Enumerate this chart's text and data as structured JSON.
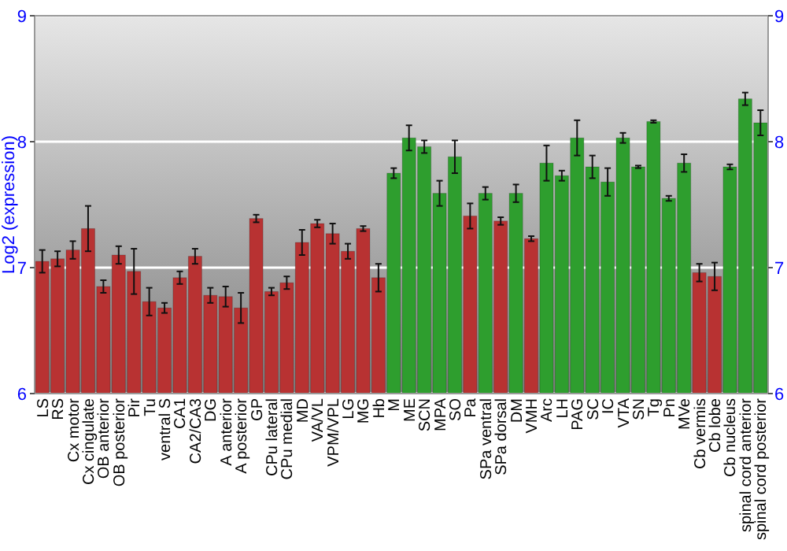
{
  "chart_data": {
    "type": "bar",
    "ylabel": "Log2 (expression)",
    "categories": [
      "LS",
      "RS",
      "Cx motor",
      "Cx cingulate",
      "OB anterior",
      "OB posterior",
      "Pir",
      "Tu",
      "ventral S",
      "CA1",
      "CA2/CA3",
      "DG",
      "A anterior",
      "A posterior",
      "GP",
      "CPu lateral",
      "CPu medial",
      "MD",
      "VA/VL",
      "VPM/VPL",
      "LG",
      "MG",
      "Hb",
      "M",
      "ME",
      "SCN",
      "MPA",
      "SO",
      "Pa",
      "SPa ventral",
      "SPa dorsal",
      "DM",
      "VMH",
      "Arc",
      "LH",
      "PAG",
      "SC",
      "IC",
      "VTA",
      "SN",
      "Tg",
      "Pn",
      "MVe",
      "Cb vermis",
      "Cb lobe",
      "Cb nucleus",
      "spinal cord anterior",
      "spinal cord posterior"
    ],
    "values": [
      7.05,
      7.07,
      7.14,
      7.31,
      6.85,
      7.1,
      6.97,
      6.73,
      6.68,
      6.92,
      7.09,
      6.78,
      6.77,
      6.68,
      7.39,
      6.81,
      6.88,
      7.2,
      7.35,
      7.27,
      7.13,
      7.31,
      6.92,
      7.75,
      8.03,
      7.96,
      7.59,
      7.88,
      7.41,
      7.59,
      7.37,
      7.59,
      7.23,
      7.83,
      7.73,
      8.03,
      7.8,
      7.68,
      8.03,
      7.8,
      8.16,
      7.55,
      7.83,
      6.96,
      6.93,
      7.8,
      8.34,
      8.15
    ],
    "errors": [
      0.09,
      0.06,
      0.07,
      0.18,
      0.05,
      0.07,
      0.18,
      0.11,
      0.04,
      0.05,
      0.06,
      0.06,
      0.08,
      0.12,
      0.03,
      0.03,
      0.05,
      0.1,
      0.03,
      0.08,
      0.06,
      0.02,
      0.11,
      0.04,
      0.1,
      0.05,
      0.1,
      0.13,
      0.1,
      0.05,
      0.03,
      0.07,
      0.02,
      0.14,
      0.04,
      0.14,
      0.09,
      0.11,
      0.04,
      0.01,
      0.01,
      0.02,
      0.07,
      0.07,
      0.11,
      0.02,
      0.05,
      0.1
    ],
    "colors": [
      "#b83232",
      "#b83232",
      "#b83232",
      "#b83232",
      "#b83232",
      "#b83232",
      "#b83232",
      "#b83232",
      "#b83232",
      "#b83232",
      "#b83232",
      "#b83232",
      "#b83232",
      "#b83232",
      "#b83232",
      "#b83232",
      "#b83232",
      "#b83232",
      "#b83232",
      "#b83232",
      "#b83232",
      "#b83232",
      "#b83232",
      "#2e9e2e",
      "#2e9e2e",
      "#2e9e2e",
      "#2e9e2e",
      "#2e9e2e",
      "#b83232",
      "#2e9e2e",
      "#b83232",
      "#2e9e2e",
      "#b83232",
      "#2e9e2e",
      "#2e9e2e",
      "#2e9e2e",
      "#2e9e2e",
      "#2e9e2e",
      "#2e9e2e",
      "#2e9e2e",
      "#2e9e2e",
      "#2e9e2e",
      "#2e9e2e",
      "#b83232",
      "#b83232",
      "#2e9e2e",
      "#2e9e2e",
      "#2e9e2e"
    ],
    "ylim": [
      6,
      9
    ],
    "yticks": [
      6,
      7,
      8,
      9
    ],
    "y2lim": [
      6,
      9
    ],
    "y2ticks": [
      6,
      7,
      8,
      9
    ],
    "grid": "y"
  }
}
